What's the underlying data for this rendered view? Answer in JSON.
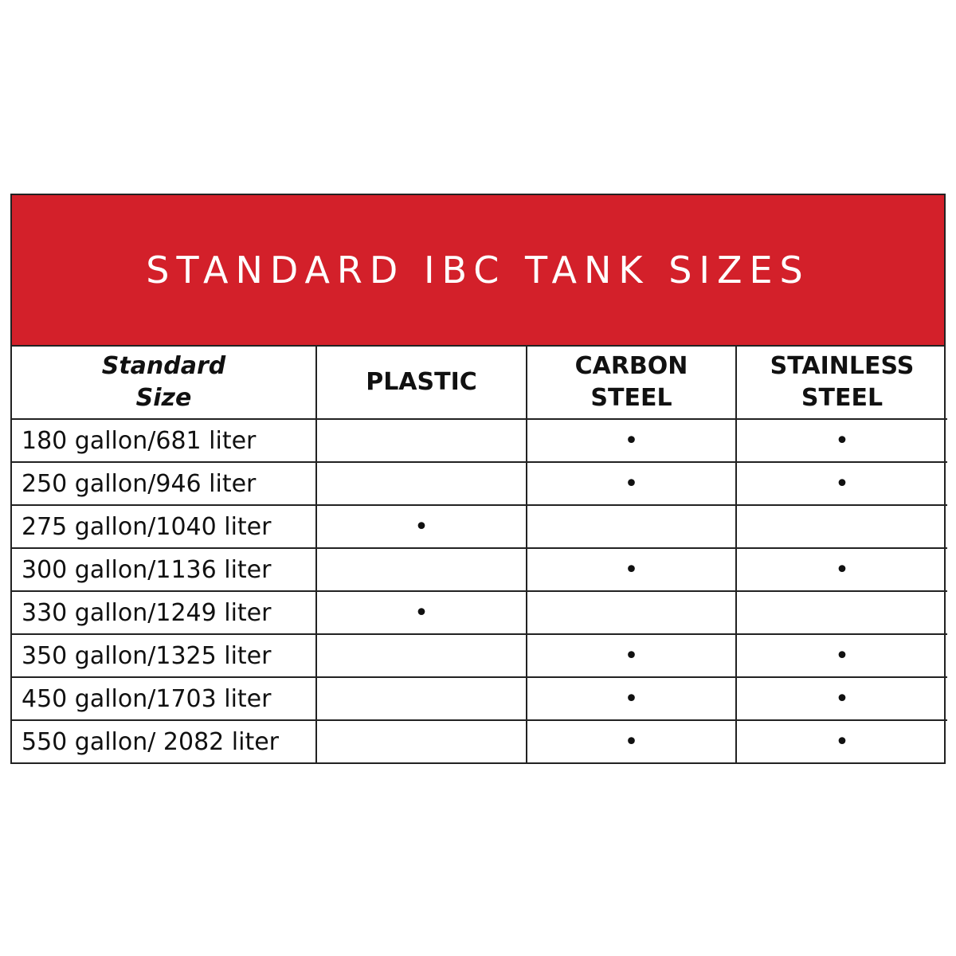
{
  "header": {
    "title": "STANDARD IBC TANK SIZES"
  },
  "table": {
    "columns": [
      "Standard Size",
      "PLASTIC",
      "CARBON STEEL",
      "STAINLESS STEEL"
    ],
    "rows": [
      [
        "180 gallon/681 liter",
        null,
        "•",
        "•"
      ],
      [
        "250 gallon/946 liter",
        null,
        "•",
        "•"
      ],
      [
        "275 gallon/1040 liter",
        "•",
        null,
        null
      ],
      [
        "300 gallon/1136 liter",
        null,
        "•",
        "•"
      ],
      [
        "330 gallon/1249 liter",
        "•",
        null,
        null
      ],
      [
        "350 gallon/1325 liter",
        null,
        "•",
        "•"
      ],
      [
        "450 gallon/1703 liter",
        null,
        "•",
        "•"
      ],
      [
        "550 gallon/ 2082 liter",
        null,
        "•",
        "•"
      ]
    ]
  }
}
